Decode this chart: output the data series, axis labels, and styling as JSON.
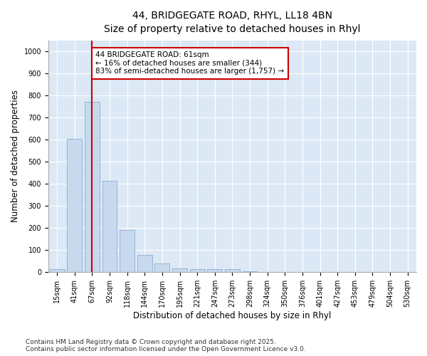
{
  "title_line1": "44, BRIDGEGATE ROAD, RHYL, LL18 4BN",
  "title_line2": "Size of property relative to detached houses in Rhyl",
  "xlabel": "Distribution of detached houses by size in Rhyl",
  "ylabel": "Number of detached properties",
  "categories": [
    "15sqm",
    "41sqm",
    "67sqm",
    "92sqm",
    "118sqm",
    "144sqm",
    "170sqm",
    "195sqm",
    "221sqm",
    "247sqm",
    "273sqm",
    "298sqm",
    "324sqm",
    "350sqm",
    "376sqm",
    "401sqm",
    "427sqm",
    "453sqm",
    "479sqm",
    "504sqm",
    "530sqm"
  ],
  "values": [
    15,
    605,
    770,
    413,
    192,
    78,
    40,
    18,
    13,
    13,
    13,
    4,
    0,
    0,
    0,
    0,
    0,
    0,
    0,
    0,
    0
  ],
  "bar_color": "#c8d8ed",
  "bar_edge_color": "#8aafd4",
  "vline_x": 2,
  "vline_color": "#cc0000",
  "annotation_text": "44 BRIDGEGATE ROAD: 61sqm\n← 16% of detached houses are smaller (344)\n83% of semi-detached houses are larger (1,757) →",
  "annotation_box_color": "#cc0000",
  "ylim": [
    0,
    1050
  ],
  "yticks": [
    0,
    100,
    200,
    300,
    400,
    500,
    600,
    700,
    800,
    900,
    1000
  ],
  "footer": "Contains HM Land Registry data © Crown copyright and database right 2025.\nContains public sector information licensed under the Open Government Licence v3.0.",
  "fig_bg_color": "#ffffff",
  "plot_bg_color": "#dce8f5",
  "grid_color": "#ffffff",
  "title_fontsize": 10,
  "subtitle_fontsize": 9,
  "axis_label_fontsize": 8.5,
  "tick_fontsize": 7,
  "footer_fontsize": 6.5,
  "annot_fontsize": 7.5
}
